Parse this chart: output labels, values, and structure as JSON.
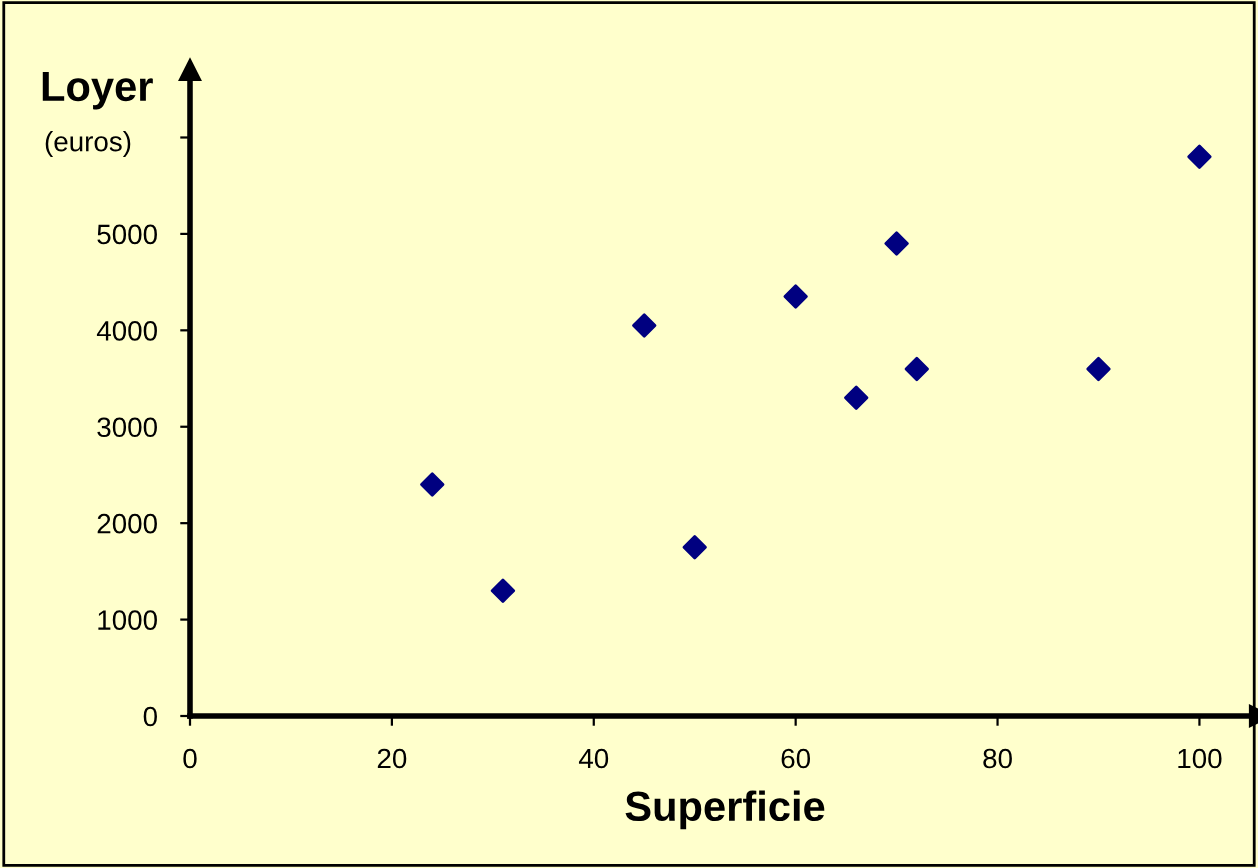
{
  "chart_data": {
    "type": "scatter",
    "xlabel": "Superficie",
    "ylabel": "Loyer",
    "annotations": [
      "(euros)"
    ],
    "x": [
      24,
      31,
      45,
      50,
      60,
      66,
      70,
      72,
      90,
      100
    ],
    "values": [
      2400,
      1300,
      4050,
      1750,
      4350,
      3300,
      4900,
      3600,
      3600,
      5800
    ],
    "color": "#000080",
    "marker": "diamond",
    "xlim": [
      0,
      106
    ],
    "xticks": [
      0,
      20,
      40,
      60,
      80,
      100
    ],
    "ylim": [
      0,
      6700
    ],
    "yticks": [
      0,
      1000,
      2000,
      3000,
      4000,
      5000,
      {
        "value": 6000,
        "label": null
      }
    ],
    "grid": false,
    "legend": false
  }
}
